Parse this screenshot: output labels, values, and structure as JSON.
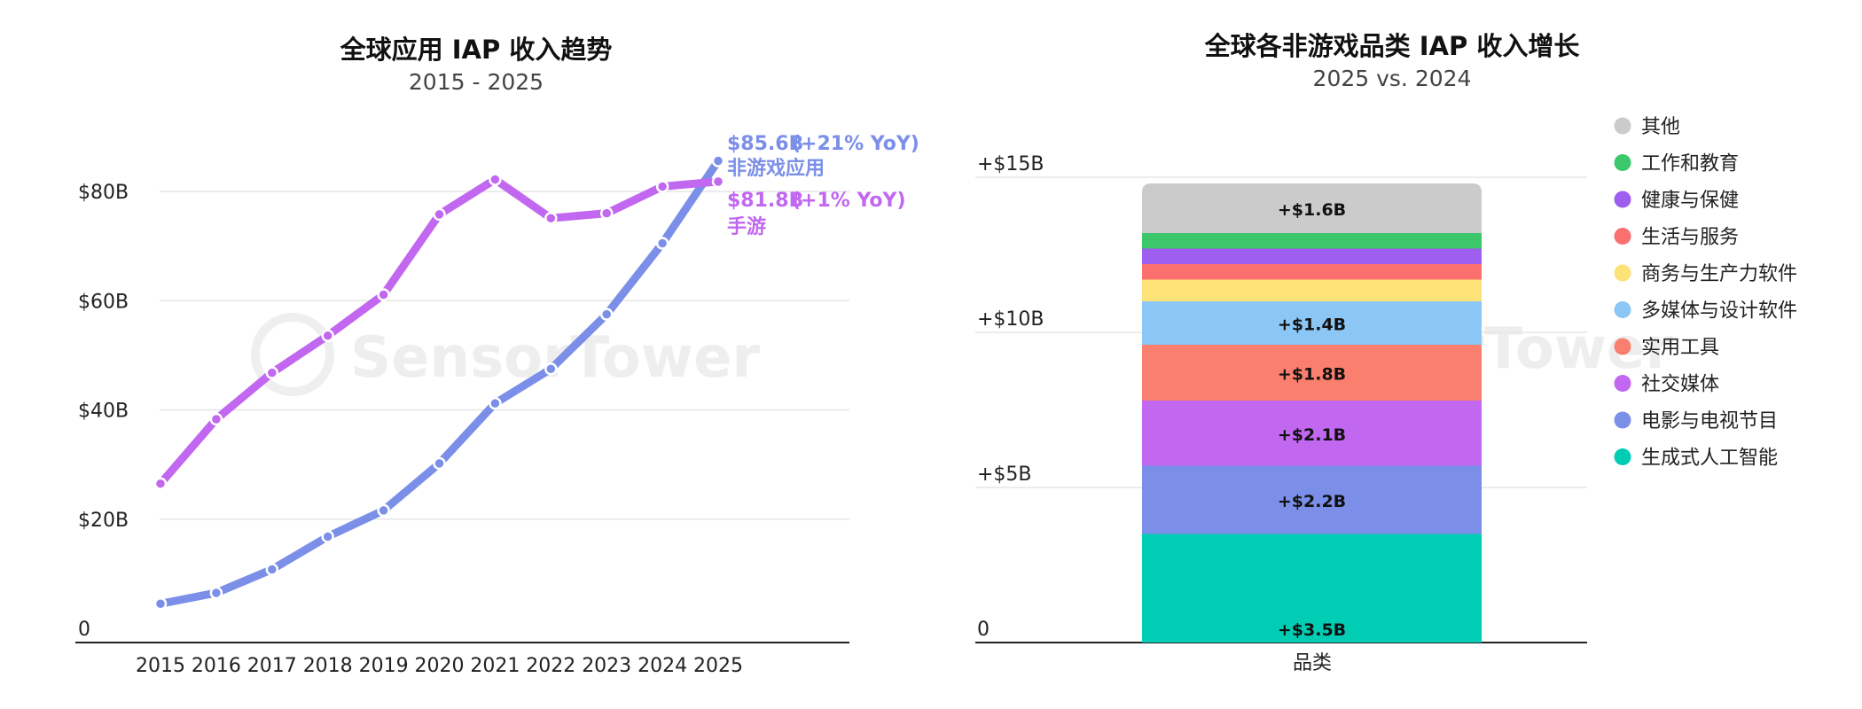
{
  "watermark": "SensorTower",
  "chart_data": [
    {
      "type": "line",
      "title": "全球应用 IAP 收入趋势",
      "subtitle": "2015 - 2025",
      "x": [
        "2015",
        "2016",
        "2017",
        "2018",
        "2019",
        "2020",
        "2021",
        "2022",
        "2023",
        "2024",
        "2025"
      ],
      "ylim": [
        0,
        90
      ],
      "y_ticks": [
        {
          "value": 0,
          "label": "0"
        },
        {
          "value": 20,
          "label": "$20B"
        },
        {
          "value": 40,
          "label": "$40B"
        },
        {
          "value": 60,
          "label": "$60B"
        },
        {
          "value": 80,
          "label": "$80B"
        }
      ],
      "grid": true,
      "series": [
        {
          "name": "非游戏应用",
          "color": "#7b8fe8",
          "values": [
            4.5,
            6.5,
            10.8,
            16.8,
            21.6,
            30.2,
            41.2,
            47.5,
            57.5,
            70.5,
            85.6
          ],
          "annotation": {
            "value_label": "$85.6B",
            "change_label": "(+21% YoY)",
            "name_label": "非游戏应用"
          }
        },
        {
          "name": "手游",
          "color": "#c167f0",
          "values": [
            26.5,
            38.3,
            46.8,
            53.6,
            61.1,
            75.8,
            82.2,
            75.1,
            76.0,
            80.9,
            81.8
          ],
          "annotation": {
            "value_label": "$81.8B",
            "change_label": "(+1% YoY)",
            "name_label": "手游"
          }
        }
      ]
    },
    {
      "type": "bar",
      "stacked": true,
      "title": "全球各非游戏品类 IAP 收入增长",
      "subtitle": "2025 vs. 2024",
      "categories": [
        "品类"
      ],
      "xlabel": "品类",
      "ylim": [
        0,
        15
      ],
      "y_ticks": [
        {
          "value": 0,
          "label": "0"
        },
        {
          "value": 5,
          "label": "+$5B"
        },
        {
          "value": 10,
          "label": "+$10B"
        },
        {
          "value": 15,
          "label": "+$15B"
        }
      ],
      "grid": true,
      "series": [
        {
          "name": "生成式人工智能",
          "color": "#00cdb4",
          "values": [
            3.5
          ],
          "label": "+$3.5B"
        },
        {
          "name": "电影与电视节目",
          "color": "#7b8fe8",
          "values": [
            2.2
          ],
          "label": "+$2.2B"
        },
        {
          "name": "社交媒体",
          "color": "#c167f0",
          "values": [
            2.1
          ],
          "label": "+$2.1B"
        },
        {
          "name": "实用工具",
          "color": "#fa7f6e",
          "values": [
            1.8
          ],
          "label": "+$1.8B"
        },
        {
          "name": "多媒体与设计软件",
          "color": "#8cc6f5",
          "values": [
            1.4
          ],
          "label": "+$1.4B"
        },
        {
          "name": "商务与生产力软件",
          "color": "#fde277",
          "values": [
            0.7
          ],
          "label": ""
        },
        {
          "name": "生活与服务",
          "color": "#fb6f6f",
          "values": [
            0.5
          ],
          "label": ""
        },
        {
          "name": "健康与保健",
          "color": "#9e5ef0",
          "values": [
            0.5
          ],
          "label": ""
        },
        {
          "name": "工作和教育",
          "color": "#3cc76a",
          "values": [
            0.5
          ],
          "label": ""
        },
        {
          "name": "其他",
          "color": "#cbcbcb",
          "values": [
            1.6
          ],
          "label": "+$1.6B"
        }
      ],
      "legend_order": [
        "其他",
        "工作和教育",
        "健康与保健",
        "生活与服务",
        "商务与生产力软件",
        "多媒体与设计软件",
        "实用工具",
        "社交媒体",
        "电影与电视节目",
        "生成式人工智能"
      ],
      "legend": "right"
    }
  ]
}
